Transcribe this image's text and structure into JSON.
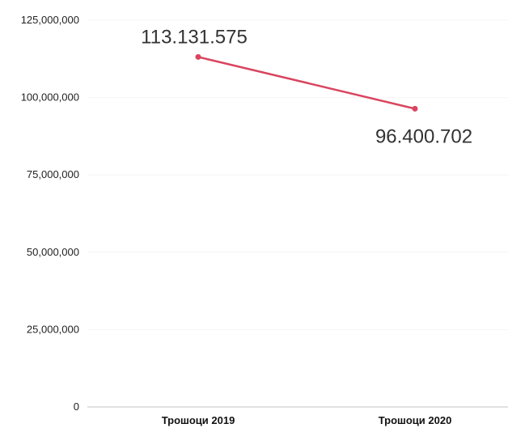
{
  "chart_data": {
    "type": "line",
    "categories": [
      "Трошоци 2019",
      "Трошоци 2020"
    ],
    "series": [
      {
        "values": [
          113131575,
          96400702
        ],
        "data_labels": [
          "113.131.575",
          "96.400.702"
        ],
        "color": "#d9455f"
      }
    ],
    "ylim": [
      0,
      125000000
    ],
    "yticks": [
      0,
      25000000,
      50000000,
      75000000,
      100000000,
      125000000
    ],
    "ytick_labels": [
      "0",
      "25,000,000",
      "50,000,000",
      "75,000,000",
      "100,000,000",
      "125,000,000"
    ],
    "grid": true,
    "legend": "none"
  }
}
